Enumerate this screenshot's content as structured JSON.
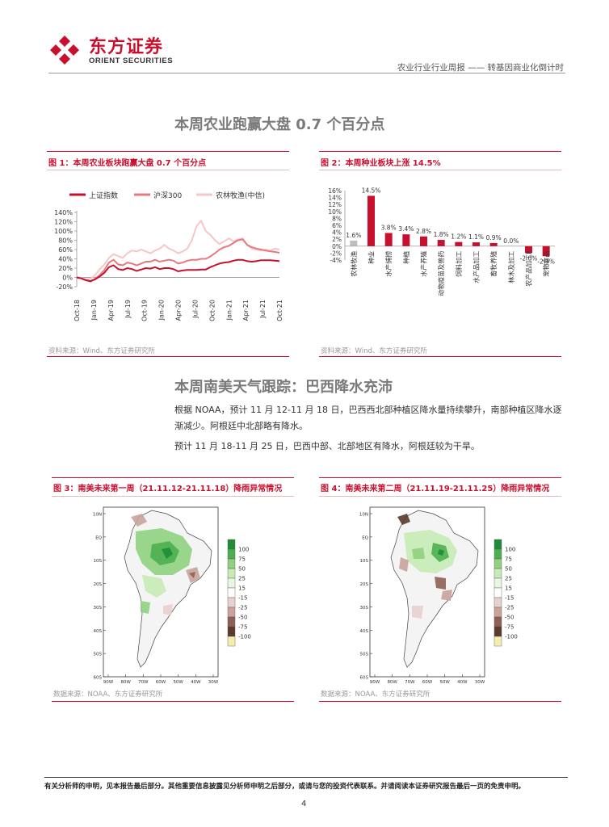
{
  "header": {
    "logo_cn": "东方证券",
    "logo_en": "ORIENT SECURITIES",
    "report_title": "农业行业行业周报 —— 转基因商业化倒计时"
  },
  "section1": {
    "title": "本周农业跑赢大盘 0.7 个百分点"
  },
  "figure1": {
    "title": "图 1：本周农业板块跑赢大盘 0.7 个百分点",
    "source": "资料来源：Wind、东方证券研究所"
  },
  "figure2": {
    "title": "图 2：本周种业板块上涨 14.5%",
    "source": "资料来源：Wind、东方证券研究所"
  },
  "section2": {
    "title": "本周南美天气跟踪：巴西降水充沛"
  },
  "paragraphs": {
    "p1_line1": "根据 NOAA，预计 11 月 12-11 月 18 日，巴西西北部种植区降水量持续攀升，南部种植区降水逐",
    "p1_line2": "渐减少。阿根廷中北部略有降水。",
    "p2": "预计 11 月 18-11 月 25 日，巴西中部、北部地区有降水，阿根廷较为干旱。"
  },
  "figure3": {
    "title": "图 3：南美未来第一周（21.11.12-21.11.18）降雨异常情况",
    "source": "数据来源：NOAA、东方证券研究所"
  },
  "figure4": {
    "title": "图 4：南美未来第二周（21.11.19-21.11.25）降雨异常情况",
    "source": "数据来源：NOAA、东方证券研究所"
  },
  "map_axes": {
    "lat_labels": [
      "10N",
      "EQ",
      "10S",
      "20S",
      "30S",
      "40S",
      "50S",
      "60S"
    ],
    "lon_labels": [
      "90W",
      "80W",
      "70W",
      "60W",
      "50W",
      "40W",
      "30W"
    ]
  },
  "map_legend": {
    "labels": [
      "100",
      "75",
      "50",
      "25",
      "15",
      "-15",
      "-25",
      "-50",
      "-75",
      "-100"
    ],
    "colors": [
      "#1e8c3a",
      "#4cb04f",
      "#8fd17f",
      "#c6ebb5",
      "#e9f7e2",
      "#ffffff",
      "#e7d2cf",
      "#c9a39c",
      "#8f6154",
      "#5b3b2c",
      "#f5ecb0"
    ]
  },
  "footer": {
    "disclaimer": "有关分析师的申明，见本报告最后部分。其他重要信息披露见分析师申明之后部分，或请与您的投资代表联系。并请阅读本证券研究报告最后一页的免责申明。",
    "page_number": "4"
  },
  "chart_data": [
    {
      "type": "line",
      "legend_placement": "top",
      "series": [
        {
          "name": "上证指数",
          "color": "#c8102e",
          "values": [
            0,
            -2,
            -6,
            -8,
            -4,
            2,
            10,
            22,
            26,
            18,
            16,
            20,
            18,
            14,
            17,
            20,
            19,
            22,
            18,
            20,
            20,
            18,
            13,
            15,
            16,
            16,
            16,
            17,
            17,
            22,
            26,
            30,
            32,
            33,
            36,
            38,
            38,
            35,
            34,
            35,
            37,
            37,
            37,
            36,
            35
          ]
        },
        {
          "name": "沪深300",
          "color": "#e8787d",
          "values": [
            0,
            -2,
            -6,
            -9,
            -3,
            5,
            16,
            32,
            38,
            28,
            26,
            32,
            30,
            26,
            30,
            34,
            34,
            38,
            34,
            36,
            38,
            36,
            30,
            32,
            36,
            38,
            38,
            40,
            40,
            45,
            52,
            60,
            65,
            68,
            74,
            80,
            82,
            70,
            65,
            62,
            60,
            58,
            56,
            55,
            53
          ]
        },
        {
          "name": "农林牧渔(中信)",
          "color": "#f6c6c8",
          "values": [
            0,
            -1,
            -4,
            -3,
            5,
            18,
            28,
            42,
            50,
            46,
            42,
            52,
            58,
            56,
            60,
            56,
            52,
            58,
            62,
            70,
            62,
            58,
            52,
            56,
            62,
            80,
            110,
            122,
            100,
            92,
            80,
            72,
            78,
            84,
            78,
            82,
            84,
            70,
            62,
            60,
            58,
            60,
            58,
            62,
            60
          ]
        }
      ],
      "x_tick_labels": [
        "Oct-18",
        "Jan-19",
        "Apr-19",
        "Jul-19",
        "Oct-19",
        "Jan-20",
        "Apr-20",
        "Jul-20",
        "Oct-20",
        "Jan-21",
        "Apr-21",
        "Jul-21",
        "Oct-21"
      ],
      "y_tick_labels": [
        "140%",
        "120%",
        "100%",
        "80%",
        "60%",
        "40%",
        "20%",
        "0%",
        "-20%"
      ],
      "ylim": [
        -20,
        140
      ]
    },
    {
      "type": "bar",
      "categories": [
        "农林牧渔",
        "种业",
        "水产捕捞",
        "种植",
        "水产养殖",
        "动物疫苗及兽药",
        "饲料加工",
        "水产品加工",
        "畜牧养殖",
        "林木及加工",
        "农产品加工Ⅱ",
        "宠物食品"
      ],
      "values": [
        1.6,
        14.5,
        3.8,
        3.4,
        2.8,
        1.8,
        1.2,
        1.1,
        0.9,
        0.0,
        -2.0,
        -2.9
      ],
      "data_labels": [
        "1.6%",
        "14.5%",
        "3.8%",
        "3.4%",
        "2.8%",
        "1.8%",
        "1.2%",
        "1.1%",
        "0.9%",
        "0.0%",
        "-2.0%",
        "-2.9%"
      ],
      "y_tick_labels": [
        "16%",
        "14%",
        "12%",
        "10%",
        "8%",
        "6%",
        "4%",
        "2%",
        "0%",
        "-2%",
        "-4%"
      ],
      "ylim": [
        -4,
        16
      ],
      "colors": {
        "first": "#bdbdbd",
        "others": "#c8102e"
      }
    }
  ]
}
